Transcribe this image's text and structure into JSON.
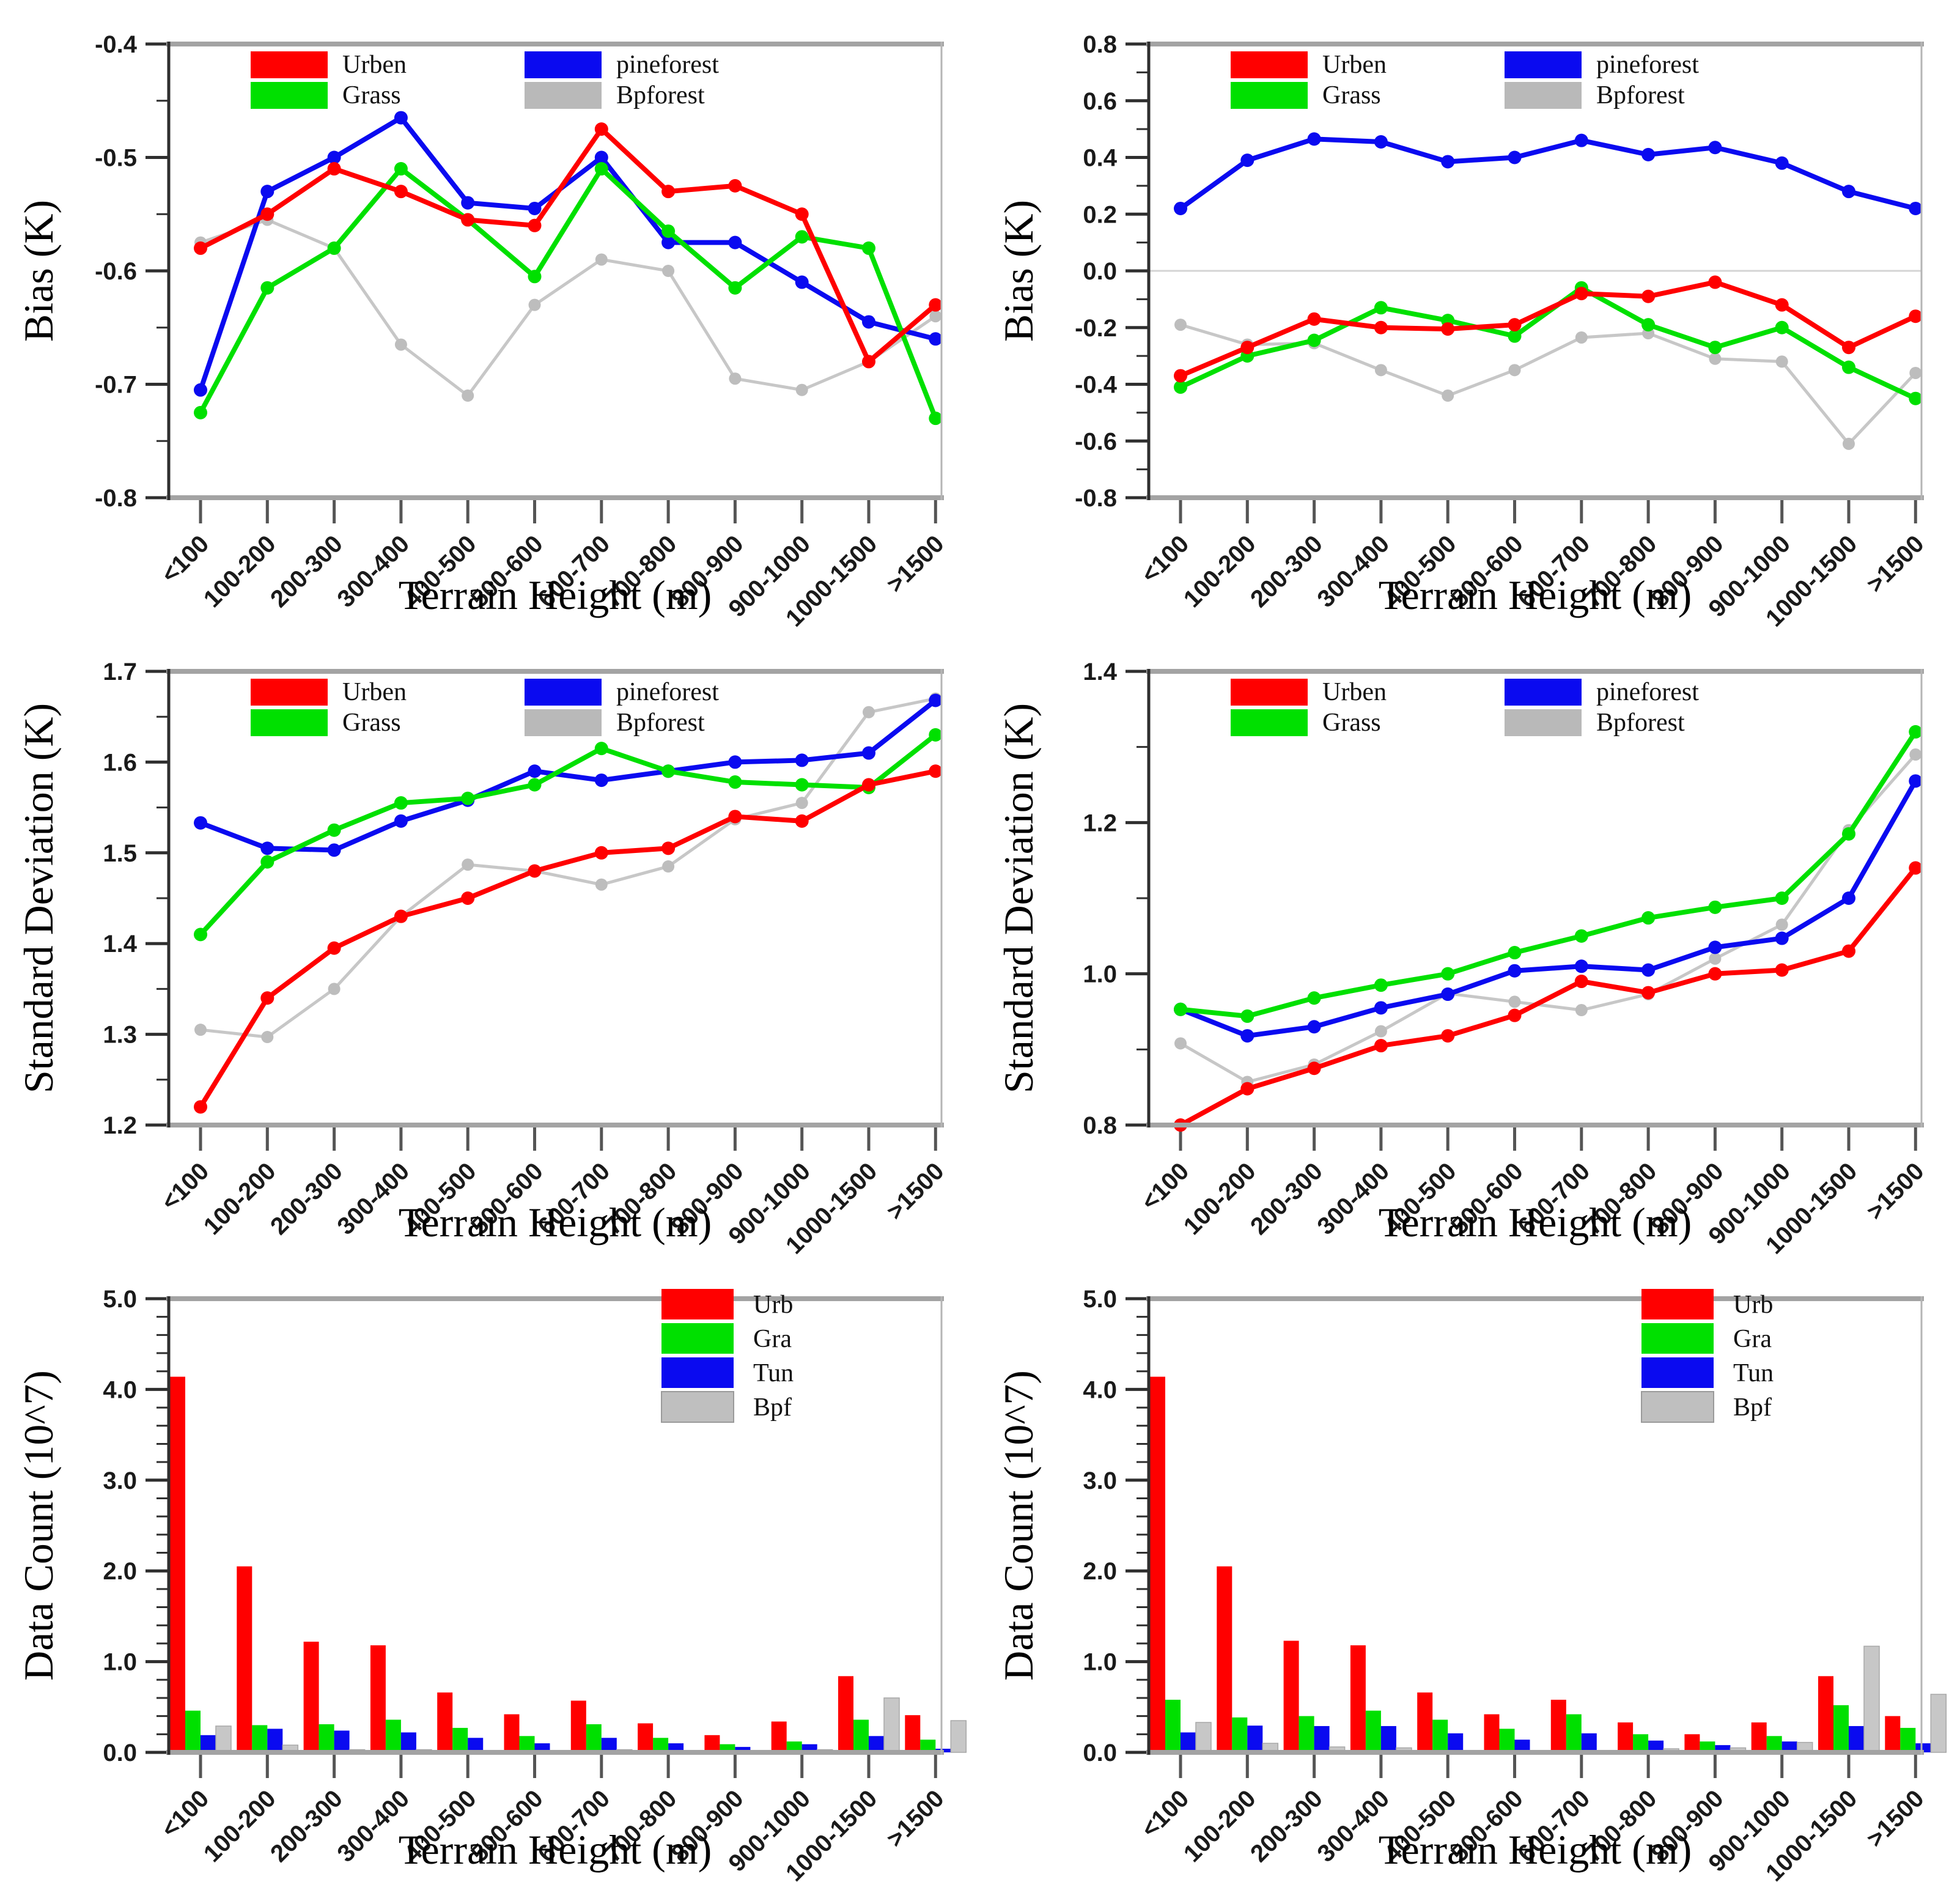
{
  "figure": {
    "background": "#ffffff",
    "xlabel": "Terrain Height (m)",
    "categories": [
      "<100",
      "100-200",
      "200-300",
      "300-400",
      "400-500",
      "500-600",
      "600-700",
      "700-800",
      "800-900",
      "900-1000",
      "1000-1500",
      ">1500"
    ]
  },
  "palette": {
    "red": "#ff0000",
    "green": "#00e000",
    "blue": "#0a0af0",
    "gray": "#c7c7c7",
    "gray_marker": "#bdbdbd",
    "frame_thick": "#a3a3a3",
    "frame_thin": "#b5b5b5",
    "axis_dark": "#2f2f2f",
    "zero_line": "#d4d4d4"
  },
  "chart_data": [
    {
      "id": "bias_left",
      "type": "line",
      "title": "",
      "xlabel": "Terrain Height (m)",
      "ylabel": "Bias (K)",
      "ylim": [
        -0.8,
        -0.4
      ],
      "yticks": [
        -0.4,
        -0.5,
        -0.6,
        -0.7,
        -0.8
      ],
      "ytick_labels": [
        "-0.4",
        "-0.5",
        "-0.6",
        "-0.7",
        "-0.8"
      ],
      "yminor_step": 0.05,
      "zero_line": false,
      "grid": false,
      "legend_layout": "two-col",
      "categories": [
        "<100",
        "100-200",
        "200-300",
        "300-400",
        "400-500",
        "500-600",
        "600-700",
        "700-800",
        "800-900",
        "900-1000",
        "1000-1500",
        ">1500"
      ],
      "series": [
        {
          "name": "Urben",
          "color_key": "red",
          "values": [
            -0.58,
            -0.55,
            -0.51,
            -0.53,
            -0.555,
            -0.56,
            -0.475,
            -0.53,
            -0.525,
            -0.55,
            -0.68,
            -0.63
          ]
        },
        {
          "name": "Grass",
          "color_key": "green",
          "values": [
            -0.725,
            -0.615,
            -0.58,
            -0.51,
            -0.555,
            -0.605,
            -0.51,
            -0.565,
            -0.615,
            -0.57,
            -0.58,
            -0.73
          ]
        },
        {
          "name": "pineforest",
          "color_key": "blue",
          "values": [
            -0.705,
            -0.53,
            -0.5,
            -0.465,
            -0.54,
            -0.545,
            -0.5,
            -0.575,
            -0.575,
            -0.61,
            -0.645,
            -0.66
          ]
        },
        {
          "name": "Bpforest",
          "color_key": "gray",
          "values": [
            -0.575,
            -0.555,
            -0.58,
            -0.665,
            -0.71,
            -0.63,
            -0.59,
            -0.6,
            -0.695,
            -0.705,
            -0.68,
            -0.64
          ]
        }
      ]
    },
    {
      "id": "bias_right",
      "type": "line",
      "title": "",
      "xlabel": "Terrain Height (m)",
      "ylabel": "Bias (K)",
      "ylim": [
        -0.8,
        0.8
      ],
      "yticks": [
        0.8,
        0.6,
        0.4,
        0.2,
        0.0,
        -0.2,
        -0.4,
        -0.6,
        -0.8
      ],
      "ytick_labels": [
        "0.8",
        "0.6",
        "0.4",
        "0.2",
        "0.0",
        "-0.2",
        "-0.4",
        "-0.6",
        "-0.8"
      ],
      "yminor_step": 0.1,
      "zero_line": true,
      "grid": false,
      "legend_layout": "two-col",
      "categories": [
        "<100",
        "100-200",
        "200-300",
        "300-400",
        "400-500",
        "500-600",
        "600-700",
        "700-800",
        "800-900",
        "900-1000",
        "1000-1500",
        ">1500"
      ],
      "series": [
        {
          "name": "Urben",
          "color_key": "red",
          "values": [
            -0.37,
            -0.27,
            -0.17,
            -0.2,
            -0.205,
            -0.19,
            -0.08,
            -0.09,
            -0.04,
            -0.12,
            -0.27,
            -0.16
          ]
        },
        {
          "name": "Grass",
          "color_key": "green",
          "values": [
            -0.41,
            -0.3,
            -0.245,
            -0.13,
            -0.175,
            -0.23,
            -0.06,
            -0.19,
            -0.27,
            -0.2,
            -0.34,
            -0.45
          ]
        },
        {
          "name": "pineforest",
          "color_key": "blue",
          "values": [
            0.22,
            0.39,
            0.465,
            0.455,
            0.385,
            0.4,
            0.46,
            0.41,
            0.435,
            0.38,
            0.28,
            0.22
          ]
        },
        {
          "name": "Bpforest",
          "color_key": "gray",
          "values": [
            -0.19,
            -0.26,
            -0.255,
            -0.35,
            -0.44,
            -0.35,
            -0.235,
            -0.22,
            -0.31,
            -0.32,
            -0.61,
            -0.36
          ]
        }
      ]
    },
    {
      "id": "stddev_left",
      "type": "line",
      "title": "",
      "xlabel": "Terrain Height (m)",
      "ylabel": "Standard Deviation (K)",
      "ylim": [
        1.2,
        1.7
      ],
      "yticks": [
        1.7,
        1.6,
        1.5,
        1.4,
        1.3,
        1.2
      ],
      "ytick_labels": [
        "1.7",
        "1.6",
        "1.5",
        "1.4",
        "1.3",
        "1.2"
      ],
      "yminor_step": 0.05,
      "zero_line": false,
      "grid": false,
      "legend_layout": "two-col",
      "categories": [
        "<100",
        "100-200",
        "200-300",
        "300-400",
        "400-500",
        "500-600",
        "600-700",
        "700-800",
        "800-900",
        "900-1000",
        "1000-1500",
        ">1500"
      ],
      "series": [
        {
          "name": "Urben",
          "color_key": "red",
          "values": [
            1.22,
            1.34,
            1.395,
            1.43,
            1.45,
            1.48,
            1.5,
            1.505,
            1.54,
            1.535,
            1.575,
            1.59
          ]
        },
        {
          "name": "Grass",
          "color_key": "green",
          "values": [
            1.41,
            1.49,
            1.525,
            1.555,
            1.56,
            1.575,
            1.615,
            1.59,
            1.578,
            1.575,
            1.572,
            1.63
          ]
        },
        {
          "name": "pineforest",
          "color_key": "blue",
          "values": [
            1.533,
            1.505,
            1.503,
            1.535,
            1.558,
            1.59,
            1.58,
            1.59,
            1.6,
            1.602,
            1.61,
            1.668
          ]
        },
        {
          "name": "Bpforest",
          "color_key": "gray",
          "values": [
            1.305,
            1.297,
            1.35,
            1.43,
            1.487,
            1.48,
            1.465,
            1.485,
            1.537,
            1.555,
            1.655,
            1.67
          ]
        }
      ]
    },
    {
      "id": "stddev_right",
      "type": "line",
      "title": "",
      "xlabel": "Terrain Height (m)",
      "ylabel": "Standard Deviation (K)",
      "ylim": [
        0.8,
        1.4
      ],
      "yticks": [
        1.4,
        1.2,
        1.0,
        0.8
      ],
      "ytick_labels": [
        "1.4",
        "1.2",
        "1.0",
        "0.8"
      ],
      "yminor_step": 0.1,
      "zero_line": false,
      "grid": false,
      "legend_layout": "two-col",
      "categories": [
        "<100",
        "100-200",
        "200-300",
        "300-400",
        "400-500",
        "500-600",
        "600-700",
        "700-800",
        "800-900",
        "900-1000",
        "1000-1500",
        ">1500"
      ],
      "series": [
        {
          "name": "Urben",
          "color_key": "red",
          "values": [
            0.8,
            0.848,
            0.875,
            0.905,
            0.918,
            0.945,
            0.99,
            0.975,
            1.0,
            1.005,
            1.03,
            1.14
          ]
        },
        {
          "name": "Grass",
          "color_key": "green",
          "values": [
            0.953,
            0.944,
            0.968,
            0.985,
            1.0,
            1.028,
            1.05,
            1.074,
            1.088,
            1.1,
            1.185,
            1.32
          ]
        },
        {
          "name": "pineforest",
          "color_key": "blue",
          "values": [
            0.953,
            0.918,
            0.93,
            0.955,
            0.973,
            1.004,
            1.01,
            1.005,
            1.035,
            1.047,
            1.1,
            1.255
          ]
        },
        {
          "name": "Bpforest",
          "color_key": "gray",
          "values": [
            0.908,
            0.857,
            0.88,
            0.924,
            0.974,
            0.963,
            0.952,
            0.973,
            1.02,
            1.065,
            1.19,
            1.29
          ]
        }
      ]
    },
    {
      "id": "count_left",
      "type": "bar",
      "title": "",
      "xlabel": "Terrain Height (m)",
      "ylabel": "Data Count (10^7)",
      "ylim": [
        0.0,
        5.0
      ],
      "yticks": [
        5.0,
        4.0,
        3.0,
        2.0,
        1.0,
        0.0
      ],
      "ytick_labels": [
        "5.0",
        "4.0",
        "3.0",
        "2.0",
        "1.0",
        "0.0"
      ],
      "yminor_step": 0.2,
      "zero_line": false,
      "grid": false,
      "legend_layout": "one-col",
      "categories": [
        "<100",
        "100-200",
        "200-300",
        "300-400",
        "400-500",
        "500-600",
        "600-700",
        "700-800",
        "800-900",
        "900-1000",
        "1000-1500",
        ">1500"
      ],
      "series": [
        {
          "name": "Urb",
          "color_key": "red",
          "values": [
            4.14,
            2.05,
            1.22,
            1.18,
            0.66,
            0.42,
            0.57,
            0.32,
            0.19,
            0.34,
            0.84,
            0.41
          ]
        },
        {
          "name": "Gra",
          "color_key": "green",
          "values": [
            0.46,
            0.3,
            0.31,
            0.36,
            0.27,
            0.18,
            0.31,
            0.16,
            0.09,
            0.12,
            0.36,
            0.14
          ]
        },
        {
          "name": "Tun",
          "color_key": "blue",
          "values": [
            0.19,
            0.26,
            0.24,
            0.22,
            0.16,
            0.1,
            0.16,
            0.1,
            0.06,
            0.09,
            0.18,
            0.04
          ]
        },
        {
          "name": "Bpf",
          "color_key": "gray",
          "values": [
            0.29,
            0.08,
            0.03,
            0.03,
            0.02,
            0.02,
            0.03,
            0.02,
            0.01,
            0.03,
            0.6,
            0.35
          ]
        }
      ]
    },
    {
      "id": "count_right",
      "type": "bar",
      "title": "",
      "xlabel": "Terrain Height (m)",
      "ylabel": "Data Count (10^7)",
      "ylim": [
        0.0,
        5.0
      ],
      "yticks": [
        5.0,
        4.0,
        3.0,
        2.0,
        1.0,
        0.0
      ],
      "ytick_labels": [
        "5.0",
        "4.0",
        "3.0",
        "2.0",
        "1.0",
        "0.0"
      ],
      "yminor_step": 0.2,
      "zero_line": false,
      "grid": false,
      "legend_layout": "one-col",
      "categories": [
        "<100",
        "100-200",
        "200-300",
        "300-400",
        "400-500",
        "500-600",
        "600-700",
        "700-800",
        "800-900",
        "900-1000",
        "1000-1500",
        ">1500"
      ],
      "series": [
        {
          "name": "Urb",
          "color_key": "red",
          "values": [
            4.14,
            2.05,
            1.23,
            1.18,
            0.66,
            0.42,
            0.58,
            0.33,
            0.2,
            0.33,
            0.84,
            0.4
          ]
        },
        {
          "name": "Gra",
          "color_key": "green",
          "values": [
            0.58,
            0.385,
            0.4,
            0.46,
            0.36,
            0.26,
            0.42,
            0.2,
            0.12,
            0.18,
            0.52,
            0.27
          ]
        },
        {
          "name": "Tun",
          "color_key": "blue",
          "values": [
            0.22,
            0.295,
            0.29,
            0.29,
            0.21,
            0.14,
            0.21,
            0.13,
            0.08,
            0.12,
            0.29,
            0.1
          ]
        },
        {
          "name": "Bpf",
          "color_key": "gray",
          "values": [
            0.33,
            0.1,
            0.06,
            0.05,
            0.02,
            0.02,
            0.02,
            0.04,
            0.05,
            0.11,
            1.17,
            0.64
          ]
        }
      ]
    }
  ]
}
